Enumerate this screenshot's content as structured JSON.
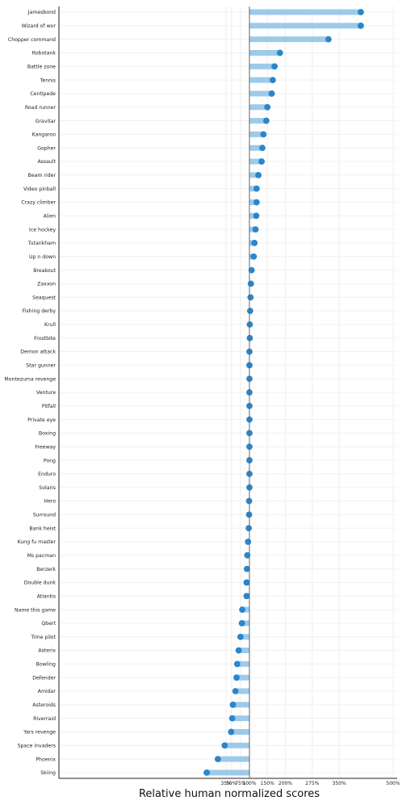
{
  "chart_data": {
    "type": "lollipop",
    "xlabel": "Relative human normalized scores",
    "ylabel": "",
    "grid": true,
    "colors": {
      "bar": "#9ecae9",
      "dot": "#2a86cc",
      "baseline": "#555555"
    },
    "xticks": [
      {
        "label": "35%",
        "value": -0.65
      },
      {
        "label": "50%",
        "value": -0.5
      },
      {
        "label": "75%",
        "value": -0.25
      },
      {
        "label": "100%",
        "value": 0.0
      },
      {
        "label": "150%",
        "value": 0.5
      },
      {
        "label": "200%",
        "value": 1.0
      },
      {
        "label": "275%",
        "value": 1.75
      },
      {
        "label": "350%",
        "value": 2.5
      },
      {
        "label": "500%",
        "value": 4.0
      }
    ],
    "categories": [
      "Jamesbond",
      "Wizard of wor",
      "Chopper command",
      "Robotank",
      "Battle zone",
      "Tennis",
      "Centipede",
      "Road runner",
      "Gravitar",
      "Kangaroo",
      "Gopher",
      "Assault",
      "Beam rider",
      "Video pinball",
      "Crazy climber",
      "Alien",
      "Ice hockey",
      "Tutankham",
      "Up n down",
      "Breakout",
      "Zaxxon",
      "Seaquest",
      "Fishing derby",
      "Krull",
      "Frostbite",
      "Demon attack",
      "Star gunner",
      "Montezuma revenge",
      "Venture",
      "Pitfall",
      "Private eye",
      "Boxing",
      "Freeway",
      "Pong",
      "Enduro",
      "Solaris",
      "Hero",
      "Surround",
      "Bank heist",
      "Kung fu master",
      "Ms pacman",
      "Berzerk",
      "Double dunk",
      "Atlantis",
      "Name this game",
      "Qbert",
      "Time pilot",
      "Asterix",
      "Bowling",
      "Defender",
      "Amidar",
      "Asteroids",
      "Riverraid",
      "Yars revenge",
      "Space invaders",
      "Phoenix",
      "Skiing"
    ],
    "values": [
      3.1,
      3.1,
      2.2,
      0.85,
      0.7,
      0.65,
      0.62,
      0.5,
      0.47,
      0.39,
      0.36,
      0.34,
      0.25,
      0.2,
      0.2,
      0.19,
      0.17,
      0.14,
      0.12,
      0.06,
      0.04,
      0.03,
      0.02,
      0.01,
      0.01,
      0.0,
      0.0,
      0.0,
      0.0,
      0.0,
      0.0,
      0.0,
      0.0,
      0.0,
      0.0,
      0.0,
      -0.01,
      -0.01,
      -0.02,
      -0.04,
      -0.06,
      -0.07,
      -0.08,
      -0.08,
      -0.2,
      -0.21,
      -0.25,
      -0.3,
      -0.34,
      -0.36,
      -0.39,
      -0.46,
      -0.48,
      -0.51,
      -0.69,
      -0.88,
      -1.19
    ]
  }
}
